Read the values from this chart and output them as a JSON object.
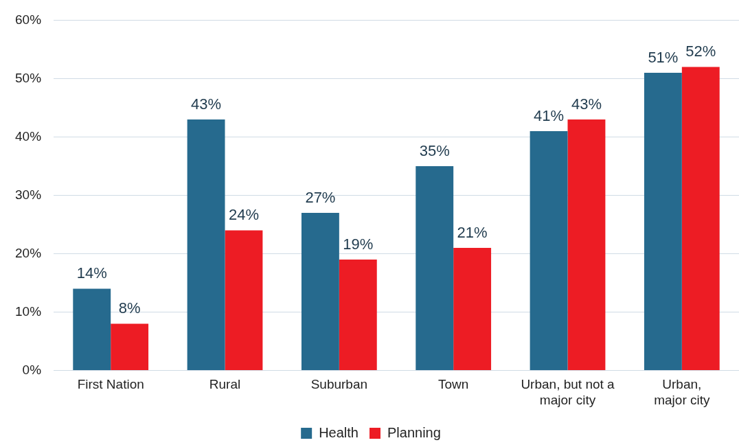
{
  "chart_data": {
    "type": "bar",
    "categories": [
      "First Nation",
      "Rural",
      "Suburban",
      "Town",
      "Urban, but not a major city",
      "Urban, major city"
    ],
    "series": [
      {
        "name": "Health",
        "color": "#266a8e",
        "values": [
          14,
          43,
          27,
          35,
          41,
          51
        ],
        "value_labels": [
          "14%",
          "43%",
          "27%",
          "35%",
          "41%",
          "51%"
        ]
      },
      {
        "name": "Planning",
        "color": "#ed1c24",
        "values": [
          8,
          24,
          19,
          21,
          43,
          52
        ],
        "value_labels": [
          "8%",
          "24%",
          "19%",
          "21%",
          "43%",
          "52%"
        ]
      }
    ],
    "ylim": [
      0,
      60
    ],
    "yticks": [
      {
        "value": 0,
        "label": "0%"
      },
      {
        "value": 10,
        "label": "10%"
      },
      {
        "value": 20,
        "label": "20%"
      },
      {
        "value": 30,
        "label": "30%"
      },
      {
        "value": 40,
        "label": "40%"
      },
      {
        "value": 50,
        "label": "50%"
      },
      {
        "value": 60,
        "label": "60%"
      }
    ],
    "grid": "y",
    "legend": "bottom"
  }
}
